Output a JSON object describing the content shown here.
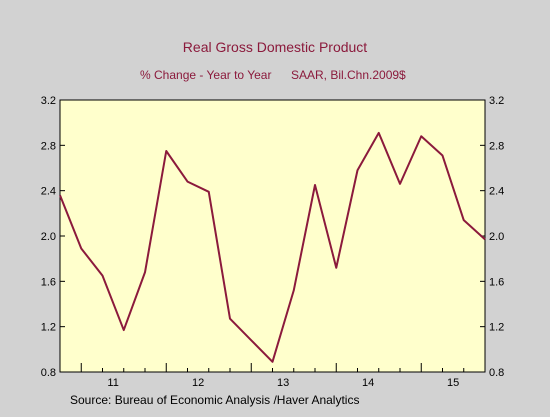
{
  "chart_data": {
    "type": "line",
    "title": "Real Gross Domestic Product",
    "subtitle_left": "% Change - Year to Year",
    "subtitle_right": "SAAR, Bil.Chn.2009$",
    "source": "Source:  Bureau of Economic Analysis /Haver Analytics",
    "xlabel": "",
    "ylabel": "",
    "ylim": [
      0.8,
      3.2
    ],
    "y_ticks": [
      "0.8",
      "1.2",
      "1.6",
      "2.0",
      "2.4",
      "2.8",
      "3.2"
    ],
    "x_tick_labels": [
      "11",
      "12",
      "13",
      "14",
      "15"
    ],
    "grid": false,
    "series": [
      {
        "values": [
          2.36,
          1.89,
          1.65,
          1.17,
          1.68,
          2.75,
          2.48,
          2.39,
          1.27,
          1.08,
          0.89,
          1.52,
          2.45,
          1.72,
          2.58,
          2.91,
          2.46,
          2.88,
          2.71,
          2.14,
          1.97
        ]
      }
    ],
    "x_start": "2010 Q4",
    "colors": {
      "line": "#8b1a3c",
      "plot_background": "#ffffcc",
      "page_background": "#d2d2d2",
      "title": "#8b1a3c"
    }
  }
}
